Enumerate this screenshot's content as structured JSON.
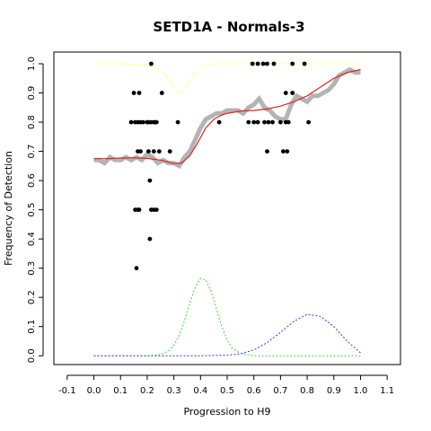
{
  "chart_data": {
    "type": "scatter",
    "title": "SETD1A - Normals-3",
    "xlabel": "Progression to H9",
    "ylabel": "Frequency of Detection",
    "xlim": [
      -0.15,
      1.15
    ],
    "ylim": [
      -0.03,
      1.04
    ],
    "x_ticks": [
      "-0.1",
      "0.0",
      "0.1",
      "0.2",
      "0.3",
      "0.4",
      "0.5",
      "0.6",
      "0.7",
      "0.8",
      "0.9",
      "1.0",
      "1.1"
    ],
    "y_ticks": [
      "0.0",
      "0.1",
      "0.2",
      "0.3",
      "0.4",
      "0.5",
      "0.6",
      "0.7",
      "0.8",
      "0.9",
      "1.0"
    ],
    "grid": false,
    "legend": "none",
    "colors": {
      "points": "#000000",
      "smoothed": "#b4b4b4",
      "fit": "#e0221b",
      "upper": "#ffff99",
      "green": "#33dd33",
      "blue": "#3333ee"
    },
    "series": [
      {
        "kind": "points",
        "x": [
          0.15,
          0.17,
          0.215,
          0.255,
          0.155,
          0.14,
          0.165,
          0.175,
          0.185,
          0.2,
          0.205,
          0.215,
          0.225,
          0.23,
          0.235,
          0.315,
          0.165,
          0.175,
          0.205,
          0.225,
          0.245,
          0.285,
          0.21,
          0.155,
          0.165,
          0.17,
          0.215,
          0.225,
          0.235,
          0.21,
          0.16,
          0.47,
          0.58,
          0.6,
          0.615,
          0.64,
          0.655,
          0.67,
          0.7,
          0.72,
          0.73,
          0.805,
          0.595,
          0.615,
          0.635,
          0.65,
          0.675,
          0.745,
          0.79,
          0.745,
          0.65,
          0.71,
          0.725,
          0.72
        ],
        "y": [
          0.9,
          0.9,
          1.0,
          0.9,
          0.8,
          0.8,
          0.8,
          0.8,
          0.8,
          0.8,
          0.8,
          0.8,
          0.8,
          0.8,
          0.8,
          0.8,
          0.7,
          0.7,
          0.7,
          0.7,
          0.7,
          0.7,
          0.6,
          0.5,
          0.5,
          0.5,
          0.5,
          0.5,
          0.5,
          0.4,
          0.3,
          0.8,
          0.8,
          0.8,
          0.8,
          0.8,
          0.8,
          0.8,
          0.8,
          0.8,
          0.8,
          0.8,
          1.0,
          1.0,
          1.0,
          1.0,
          1.0,
          1.0,
          1.0,
          0.9,
          0.7,
          0.7,
          0.7,
          0.9
        ]
      },
      {
        "kind": "smoothed",
        "x": [
          0.0,
          0.02,
          0.04,
          0.06,
          0.08,
          0.1,
          0.12,
          0.14,
          0.16,
          0.18,
          0.2,
          0.22,
          0.24,
          0.26,
          0.28,
          0.3,
          0.32,
          0.34,
          0.36,
          0.38,
          0.4,
          0.42,
          0.44,
          0.46,
          0.48,
          0.5,
          0.52,
          0.54,
          0.56,
          0.58,
          0.6,
          0.62,
          0.64,
          0.66,
          0.68,
          0.7,
          0.72,
          0.74,
          0.76,
          0.78,
          0.8,
          0.82,
          0.84,
          0.86,
          0.88,
          0.9,
          0.92,
          0.94,
          0.96,
          0.98,
          1.0
        ],
        "y": [
          0.67,
          0.67,
          0.66,
          0.68,
          0.67,
          0.67,
          0.68,
          0.67,
          0.68,
          0.67,
          0.69,
          0.68,
          0.66,
          0.67,
          0.66,
          0.66,
          0.65,
          0.68,
          0.7,
          0.74,
          0.78,
          0.81,
          0.82,
          0.83,
          0.83,
          0.84,
          0.84,
          0.84,
          0.83,
          0.85,
          0.86,
          0.88,
          0.85,
          0.84,
          0.82,
          0.81,
          0.81,
          0.86,
          0.89,
          0.88,
          0.87,
          0.89,
          0.89,
          0.9,
          0.91,
          0.93,
          0.96,
          0.97,
          0.98,
          0.97,
          0.97
        ]
      },
      {
        "kind": "fit",
        "x": [
          0.0,
          0.05,
          0.1,
          0.15,
          0.2,
          0.25,
          0.3,
          0.33,
          0.36,
          0.39,
          0.42,
          0.45,
          0.48,
          0.5,
          0.55,
          0.6,
          0.65,
          0.7,
          0.75,
          0.8,
          0.85,
          0.9,
          0.95,
          1.0
        ],
        "y": [
          0.675,
          0.675,
          0.677,
          0.678,
          0.676,
          0.67,
          0.658,
          0.66,
          0.685,
          0.73,
          0.78,
          0.81,
          0.825,
          0.83,
          0.838,
          0.84,
          0.845,
          0.855,
          0.87,
          0.89,
          0.92,
          0.95,
          0.97,
          0.98
        ]
      },
      {
        "kind": "upper",
        "x": [
          0.0,
          0.1,
          0.2,
          0.25,
          0.28,
          0.3,
          0.32,
          0.34,
          0.36,
          0.38,
          0.4,
          0.45,
          0.5,
          0.6,
          0.7,
          0.8,
          0.9,
          1.0
        ],
        "y": [
          1.0,
          1.0,
          0.995,
          0.98,
          0.95,
          0.92,
          0.9,
          0.91,
          0.94,
          0.97,
          0.99,
          1.0,
          1.0,
          1.0,
          1.0,
          1.0,
          1.0,
          1.0
        ]
      },
      {
        "kind": "green-density",
        "x": [
          0.0,
          0.2,
          0.25,
          0.28,
          0.3,
          0.32,
          0.34,
          0.36,
          0.38,
          0.4,
          0.42,
          0.44,
          0.46,
          0.48,
          0.5,
          0.52,
          0.55,
          0.6,
          0.8,
          1.0
        ],
        "y": [
          0.0,
          0.0,
          0.004,
          0.016,
          0.036,
          0.07,
          0.12,
          0.18,
          0.235,
          0.265,
          0.26,
          0.22,
          0.16,
          0.1,
          0.055,
          0.025,
          0.008,
          0.0,
          0.0,
          0.0
        ]
      },
      {
        "kind": "blue-density",
        "x": [
          0.0,
          0.4,
          0.5,
          0.55,
          0.6,
          0.65,
          0.7,
          0.75,
          0.8,
          0.85,
          0.9,
          0.95,
          1.0
        ],
        "y": [
          0.0,
          0.0,
          0.002,
          0.007,
          0.02,
          0.045,
          0.08,
          0.118,
          0.142,
          0.135,
          0.1,
          0.05,
          0.01
        ]
      }
    ]
  }
}
